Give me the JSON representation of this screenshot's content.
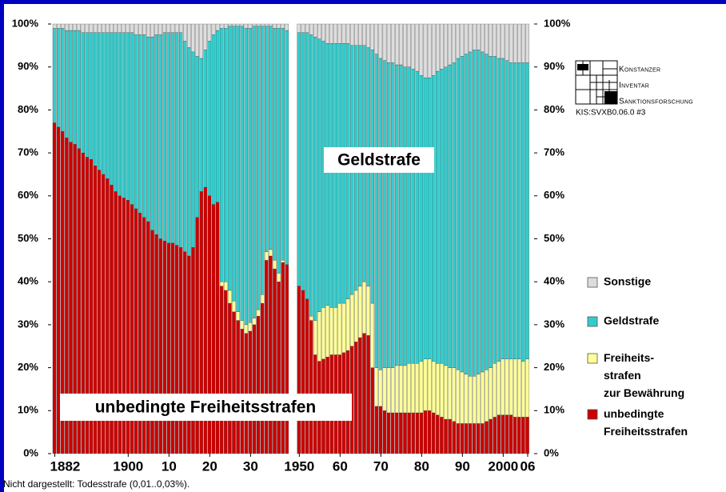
{
  "chart_data": {
    "type": "stacked_bar",
    "categories": [
      1882,
      1883,
      1884,
      1885,
      1886,
      1887,
      1888,
      1889,
      1890,
      1891,
      1892,
      1893,
      1894,
      1895,
      1896,
      1897,
      1898,
      1899,
      1900,
      1901,
      1902,
      1903,
      1904,
      1905,
      1906,
      1907,
      1908,
      1909,
      1910,
      1911,
      1912,
      1913,
      1914,
      1915,
      1916,
      1917,
      1918,
      1919,
      1920,
      1921,
      1922,
      1923,
      1924,
      1925,
      1926,
      1927,
      1928,
      1929,
      1930,
      1931,
      1932,
      1933,
      1934,
      1935,
      1936,
      1937,
      1938,
      1939,
      1950,
      1951,
      1952,
      1953,
      1954,
      1955,
      1956,
      1957,
      1958,
      1959,
      1960,
      1961,
      1962,
      1963,
      1964,
      1965,
      1966,
      1967,
      1968,
      1969,
      1970,
      1971,
      1972,
      1973,
      1974,
      1975,
      1976,
      1977,
      1978,
      1979,
      1980,
      1981,
      1982,
      1983,
      1984,
      1985,
      1986,
      1987,
      1988,
      1989,
      1990,
      1991,
      1992,
      1993,
      1994,
      1995,
      1996,
      1997,
      1998,
      1999,
      2000,
      2001,
      2002,
      2003,
      2004,
      2005,
      2006
    ],
    "series": [
      {
        "name": "unbedingte\nFreiheitsstrafen",
        "color": "#cc0000",
        "values": [
          77,
          76,
          75,
          73.5,
          72.5,
          72,
          71,
          70,
          69,
          68.5,
          67,
          66,
          65,
          64,
          62.5,
          61,
          60,
          59.5,
          59,
          58,
          57,
          56,
          55,
          54,
          52,
          51,
          50,
          49.5,
          49,
          49,
          48.5,
          48,
          47,
          46,
          48,
          55,
          61,
          62,
          60,
          58,
          58.5,
          39,
          38,
          35,
          33,
          31,
          29,
          28,
          28.5,
          30,
          32,
          35,
          45,
          46,
          43,
          40,
          44.5,
          44,
          39,
          38,
          36,
          31,
          23,
          21.5,
          22,
          22.5,
          23,
          23,
          23,
          23.5,
          24,
          25,
          26,
          27,
          28,
          27.5,
          20,
          11,
          11,
          10,
          9.5,
          9.5,
          9.5,
          9.5,
          9.5,
          9.5,
          9.5,
          9.5,
          9.5,
          10,
          10,
          9.5,
          9,
          8.5,
          8,
          8,
          7.5,
          7,
          7,
          7,
          7,
          7,
          7,
          7,
          7.5,
          8,
          8.5,
          9,
          9,
          9,
          9,
          8.5,
          8.5,
          8.5,
          8.5
        ]
      },
      {
        "name": "Freiheits-\nstrafen\nzur Bewährung",
        "color": "#ffff99",
        "values": [
          0,
          0,
          0,
          0,
          0,
          0,
          0,
          0,
          0,
          0,
          0,
          0,
          0,
          0,
          0,
          0,
          0,
          0,
          0,
          0,
          0,
          0,
          0,
          0,
          0,
          0,
          0,
          0,
          0,
          0,
          0,
          0,
          0,
          0,
          0,
          0,
          0,
          0,
          0,
          0,
          0,
          1,
          2,
          3,
          2.5,
          2,
          2,
          2,
          2,
          1.5,
          1.5,
          2,
          2,
          1.5,
          2,
          2,
          0.5,
          0,
          0,
          0,
          0,
          1,
          8,
          11.5,
          12,
          12,
          11,
          11,
          12,
          11.5,
          12,
          12,
          12,
          12,
          12,
          11.5,
          15,
          9,
          8.5,
          10,
          10.5,
          10.5,
          11,
          11,
          11,
          11.5,
          11.5,
          11.5,
          12,
          12,
          12,
          12,
          12,
          12.5,
          12.5,
          12,
          12.5,
          12.5,
          12,
          11.5,
          11,
          11,
          11.5,
          12,
          12,
          12,
          12.5,
          12.5,
          13,
          13,
          13,
          13.5,
          13.5,
          13,
          13.5
        ]
      },
      {
        "name": "Geldstrafe",
        "color": "#33cccc",
        "values": [
          22,
          23,
          24,
          25,
          26,
          26.5,
          27.5,
          28,
          29,
          29.5,
          31,
          32,
          33,
          34,
          35.5,
          37,
          38,
          38.5,
          39,
          40,
          40.5,
          41.5,
          42.5,
          43,
          45,
          46.5,
          47.5,
          48.5,
          49,
          49,
          49.5,
          50,
          49,
          48.5,
          45.5,
          37.5,
          31,
          32,
          36,
          39.5,
          40,
          59,
          59,
          61.5,
          64,
          66.5,
          68.5,
          69,
          68.5,
          68,
          66,
          62.5,
          52.5,
          52,
          54,
          57,
          54,
          54.5,
          59,
          60,
          62,
          65.5,
          66,
          63.5,
          62,
          61,
          61.5,
          61.5,
          60.5,
          60.5,
          59.5,
          58,
          57,
          56,
          55,
          55.5,
          59,
          73,
          72.5,
          71.5,
          71,
          71,
          70,
          70,
          69.5,
          69,
          68.5,
          68,
          66.5,
          65.5,
          65.5,
          66.5,
          68,
          68.5,
          69.5,
          70.5,
          71,
          72.5,
          73.5,
          74.5,
          75.5,
          76,
          75.5,
          74.5,
          73.5,
          72.5,
          71.5,
          70.5,
          70,
          69.5,
          69,
          69,
          69,
          69.5,
          69
        ]
      },
      {
        "name": "Sonstige",
        "color": "#dddddd",
        "values": [
          1,
          1,
          1,
          1.5,
          1.5,
          1.5,
          1.5,
          2,
          2,
          2,
          2,
          2,
          2,
          2,
          2,
          2,
          2,
          2,
          2,
          2,
          2.5,
          2.5,
          2.5,
          3,
          3,
          2.5,
          2.5,
          2,
          2,
          2,
          2,
          2,
          4,
          5.5,
          6.5,
          7.5,
          8,
          6,
          4,
          2.5,
          1.5,
          1,
          1,
          0.5,
          0.5,
          0.5,
          0.5,
          1,
          1,
          0.5,
          0.5,
          0.5,
          0.5,
          0.5,
          1,
          1,
          1,
          1.5,
          2,
          2,
          2,
          2.5,
          3,
          3.5,
          4,
          4.5,
          4.5,
          4.5,
          4.5,
          4.5,
          4.5,
          5,
          5,
          5,
          5,
          5.5,
          6,
          7,
          8,
          8.5,
          9,
          9,
          9.5,
          9.5,
          10,
          10,
          10.5,
          11,
          12,
          12.5,
          12.5,
          12,
          11,
          10.5,
          10,
          9.5,
          9,
          8,
          7.5,
          7,
          6.5,
          6,
          6,
          6.5,
          7,
          7.5,
          7.5,
          8,
          8,
          8.5,
          9,
          9,
          9,
          9,
          9
        ]
      }
    ],
    "ylim": [
      0,
      100
    ],
    "yticks": [
      {
        "value": 0,
        "label": "0%"
      },
      {
        "value": 10,
        "label": "10%"
      },
      {
        "value": 20,
        "label": "20%"
      },
      {
        "value": 30,
        "label": "30%"
      },
      {
        "value": 40,
        "label": "40%"
      },
      {
        "value": 50,
        "label": "50%"
      },
      {
        "value": 60,
        "label": "60%"
      },
      {
        "value": 70,
        "label": "70%"
      },
      {
        "value": 80,
        "label": "80%"
      },
      {
        "value": 90,
        "label": "90%"
      },
      {
        "value": 100,
        "label": "100%"
      }
    ],
    "xticks": [
      1882,
      1900,
      {
        "value": 1910,
        "label": "10"
      },
      {
        "value": 1920,
        "label": "20"
      },
      {
        "value": 1930,
        "label": "30"
      },
      1950,
      {
        "value": 1960,
        "label": "60"
      },
      {
        "value": 1970,
        "label": "70"
      },
      {
        "value": 1980,
        "label": "80"
      },
      {
        "value": 1990,
        "label": "90"
      },
      2000,
      {
        "value": 2006,
        "label": "06"
      }
    ],
    "annotations": [
      "Geldstrafe",
      "unbedingte Freiheitsstrafen"
    ],
    "footnote": "Nicht dargestellt: Todesstrafe (0,01..0,03%).",
    "logo": {
      "lines": [
        "Konstanzer",
        "Inventar",
        "Sanktionsforschung"
      ],
      "code": "KIS:SVXB0.06.0 #3"
    }
  }
}
